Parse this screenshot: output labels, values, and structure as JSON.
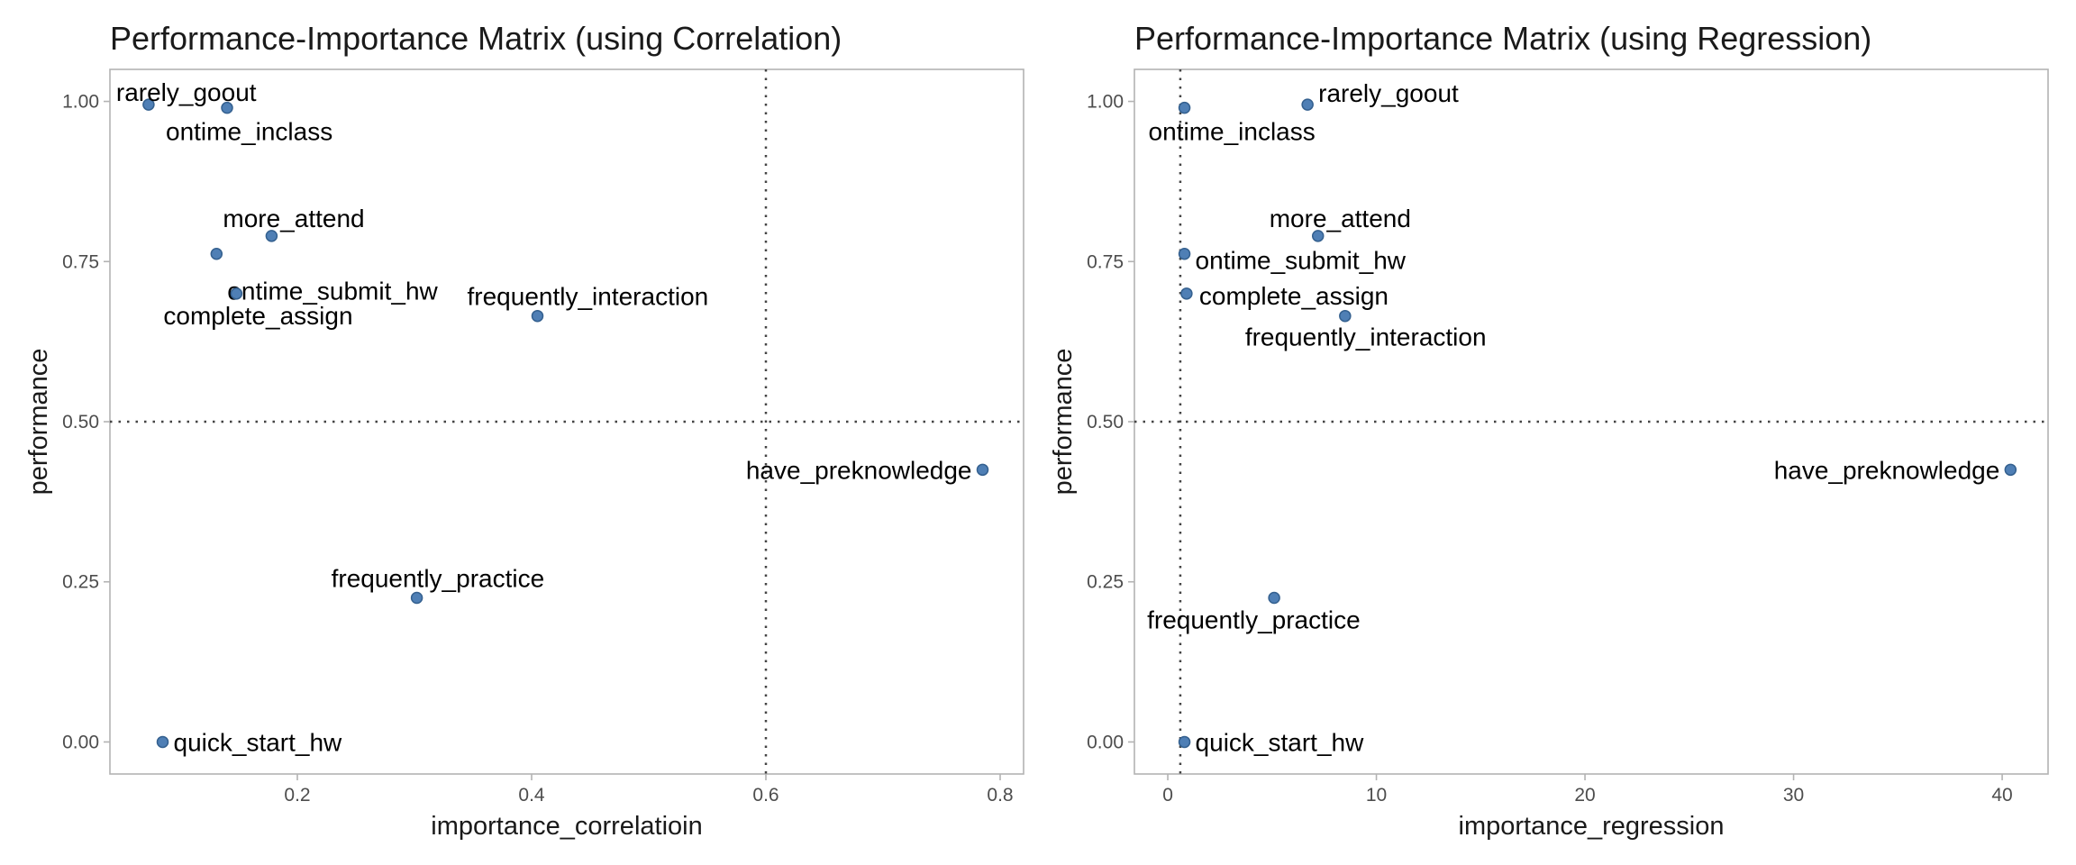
{
  "colors": {
    "point": "#4f7fb5",
    "point_outline": "#34608f",
    "reference_line": "#444444",
    "frame": "#b3b3b3"
  },
  "chart_data": [
    {
      "type": "scatter",
      "title": "Performance-Importance Matrix (using Correlation)",
      "xlabel": "importance_correlatioin",
      "ylabel": "performance",
      "xlim": [
        0.04,
        0.82
      ],
      "ylim": [
        -0.05,
        1.05
      ],
      "xticks": [
        0.2,
        0.4,
        0.6,
        0.8
      ],
      "xtick_labels": [
        "0.2",
        "0.4",
        "0.6",
        "0.8"
      ],
      "yticks": [
        0,
        0.25,
        0.5,
        0.75,
        1
      ],
      "ytick_labels": [
        "0.00",
        "0.25",
        "0.50",
        "0.75",
        "1.00"
      ],
      "grid": false,
      "reference_lines": {
        "x": 0.6,
        "y": 0.5
      },
      "points": [
        {
          "label": "rarely_goout",
          "x": 0.073,
          "y": 0.995
        },
        {
          "label": "ontime_inclass",
          "x": 0.14,
          "y": 0.99
        },
        {
          "label": "more_attend",
          "x": 0.178,
          "y": 0.79
        },
        {
          "label": "ontime_submit_hw",
          "x": 0.131,
          "y": 0.762
        },
        {
          "label": "complete_assign",
          "x": 0.148,
          "y": 0.7
        },
        {
          "label": "frequently_interaction",
          "x": 0.405,
          "y": 0.665
        },
        {
          "label": "have_preknowledge",
          "x": 0.785,
          "y": 0.425
        },
        {
          "label": "frequently_practice",
          "x": 0.302,
          "y": 0.225
        },
        {
          "label": "quick_start_hw",
          "x": 0.085,
          "y": 0.0
        }
      ]
    },
    {
      "type": "scatter",
      "title": "Performance-Importance Matrix (using Regression)",
      "xlabel": "importance_regression",
      "ylabel": "performance",
      "xlim": [
        -1.6,
        42.2
      ],
      "ylim": [
        -0.05,
        1.05
      ],
      "xticks": [
        0,
        10,
        20,
        30,
        40
      ],
      "xtick_labels": [
        "0",
        "10",
        "20",
        "30",
        "40"
      ],
      "yticks": [
        0,
        0.25,
        0.5,
        0.75,
        1
      ],
      "ytick_labels": [
        "0.00",
        "0.25",
        "0.50",
        "0.75",
        "1.00"
      ],
      "grid": false,
      "reference_lines": {
        "x": 0.6,
        "y": 0.5
      },
      "points": [
        {
          "label": "rarely_goout",
          "x": 6.7,
          "y": 0.995
        },
        {
          "label": "ontime_inclass",
          "x": 0.8,
          "y": 0.99
        },
        {
          "label": "more_attend",
          "x": 7.2,
          "y": 0.79
        },
        {
          "label": "ontime_submit_hw",
          "x": 0.8,
          "y": 0.762
        },
        {
          "label": "complete_assign",
          "x": 0.9,
          "y": 0.7
        },
        {
          "label": "frequently_interaction",
          "x": 8.5,
          "y": 0.665
        },
        {
          "label": "have_preknowledge",
          "x": 40.4,
          "y": 0.425
        },
        {
          "label": "frequently_practice",
          "x": 5.1,
          "y": 0.225
        },
        {
          "label": "quick_start_hw",
          "x": 0.8,
          "y": 0.0
        }
      ]
    }
  ]
}
